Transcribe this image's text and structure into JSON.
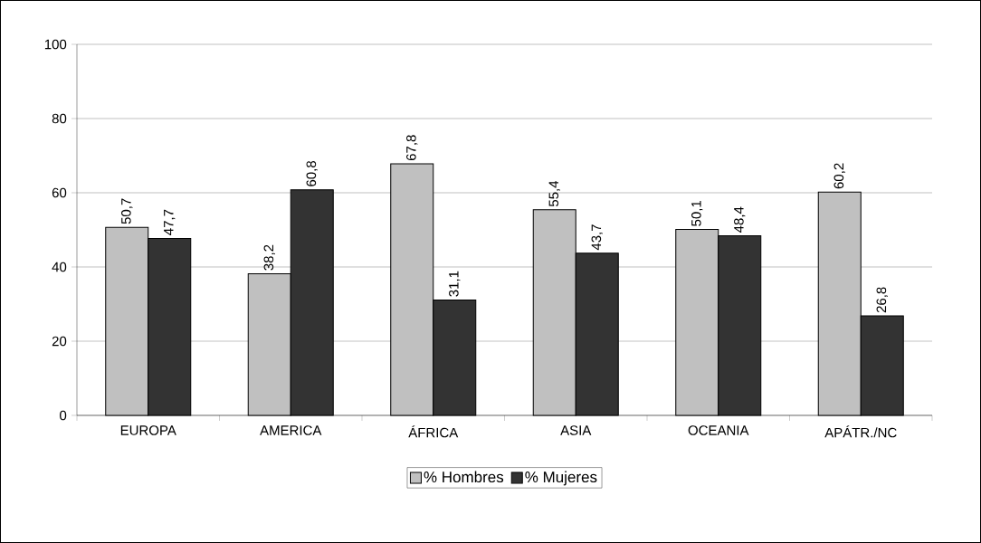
{
  "chart_data": {
    "type": "bar",
    "categories": [
      "EUROPA",
      "AMERICA",
      "ÁFRICA",
      "ASIA",
      "OCEANIA",
      "APÁTR./NC"
    ],
    "series": [
      {
        "name": "% Hombres",
        "color": "#c0c0c0",
        "values": [
          50.7,
          38.2,
          67.8,
          55.4,
          50.1,
          60.2
        ],
        "value_labels": [
          "50,7",
          "38,2",
          "67,8",
          "55,4",
          "50,1",
          "60,2"
        ]
      },
      {
        "name": "% Mujeres",
        "color": "#333333",
        "values": [
          47.7,
          60.8,
          31.1,
          43.7,
          48.4,
          26.8
        ],
        "value_labels": [
          "47,7",
          "60,8",
          "31,1",
          "43,7",
          "48,4",
          "26,8"
        ]
      }
    ],
    "ylim": [
      0,
      100
    ],
    "yticks": [
      0,
      20,
      40,
      60,
      80,
      100
    ],
    "grid": "y",
    "legend": "bottom"
  }
}
